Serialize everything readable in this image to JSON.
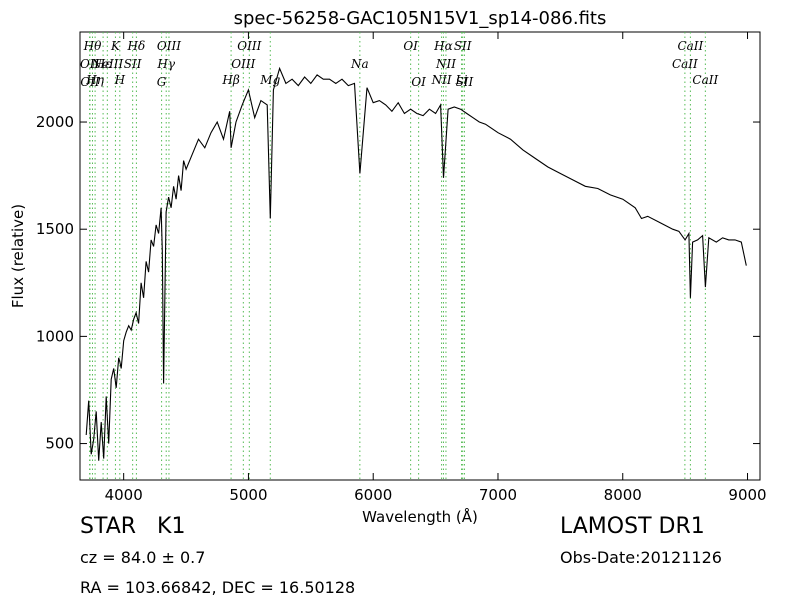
{
  "chart_data": {
    "type": "line",
    "title": "spec-56258-GAC105N15V1_sp14-086.fits",
    "xlabel": "Wavelength (Å)",
    "ylabel": "Flux (relative)",
    "xlim": [
      3650,
      9100
    ],
    "ylim": [
      330,
      2420
    ],
    "xticks": [
      "4000",
      "5000",
      "6000",
      "7000",
      "8000",
      "9000"
    ],
    "yticks": [
      "500",
      "1000",
      "1500",
      "2000"
    ],
    "series": [
      {
        "x": [
          3700,
          3720,
          3740,
          3760,
          3780,
          3800,
          3820,
          3840,
          3860,
          3880,
          3900,
          3920,
          3940,
          3960,
          3970,
          3980,
          4000,
          4020,
          4040,
          4060,
          4080,
          4100,
          4120,
          4140,
          4160,
          4180,
          4200,
          4220,
          4240,
          4260,
          4280,
          4300,
          4310,
          4320,
          4340,
          4360,
          4380,
          4400,
          4420,
          4440,
          4460,
          4480,
          4500,
          4550,
          4600,
          4650,
          4700,
          4750,
          4800,
          4850,
          4861,
          4900,
          4950,
          5000,
          5050,
          5100,
          5150,
          5175,
          5200,
          5250,
          5300,
          5350,
          5400,
          5450,
          5500,
          5550,
          5600,
          5650,
          5700,
          5750,
          5800,
          5850,
          5893,
          5950,
          6000,
          6050,
          6100,
          6150,
          6200,
          6250,
          6300,
          6350,
          6400,
          6450,
          6500,
          6540,
          6563,
          6600,
          6650,
          6700,
          6750,
          6800,
          6850,
          6900,
          7000,
          7100,
          7200,
          7300,
          7400,
          7500,
          7600,
          7700,
          7800,
          7900,
          8000,
          8100,
          8150,
          8200,
          8300,
          8400,
          8450,
          8500,
          8530,
          8542,
          8560,
          8600,
          8640,
          8662,
          8690,
          8750,
          8800,
          8850,
          8900,
          8950,
          8990
        ],
        "values": [
          540,
          700,
          450,
          520,
          650,
          420,
          600,
          430,
          720,
          500,
          800,
          850,
          760,
          900,
          880,
          850,
          980,
          1020,
          1050,
          1030,
          1080,
          1110,
          1060,
          1250,
          1180,
          1350,
          1300,
          1450,
          1420,
          1520,
          1480,
          1600,
          1400,
          780,
          1580,
          1650,
          1600,
          1700,
          1640,
          1750,
          1680,
          1820,
          1780,
          1850,
          1920,
          1880,
          1950,
          2000,
          1920,
          2050,
          1880,
          2000,
          2080,
          2150,
          2020,
          2100,
          2080,
          1550,
          2150,
          2250,
          2180,
          2200,
          2170,
          2210,
          2180,
          2220,
          2200,
          2200,
          2180,
          2200,
          2170,
          2180,
          1760,
          2160,
          2090,
          2100,
          2080,
          2050,
          2090,
          2040,
          2060,
          2040,
          2030,
          2060,
          2040,
          2080,
          1740,
          2060,
          2070,
          2060,
          2040,
          2020,
          2000,
          1990,
          1950,
          1920,
          1870,
          1830,
          1790,
          1760,
          1730,
          1700,
          1690,
          1660,
          1640,
          1600,
          1550,
          1560,
          1530,
          1500,
          1490,
          1450,
          1480,
          1180,
          1440,
          1450,
          1470,
          1230,
          1460,
          1440,
          1460,
          1450,
          1450,
          1440,
          1330
        ]
      }
    ],
    "line_color": "#000000",
    "marker_color": "#55bb55",
    "lines": [
      {
        "x": 3727,
        "label": "OII",
        "row": 2
      },
      {
        "x": 3730,
        "label": "OII",
        "row": 4
      },
      {
        "x": 3750,
        "label": "Hθ",
        "row": 1
      },
      {
        "x": 3771,
        "label": "Hη",
        "row": 3
      },
      {
        "x": 3835,
        "label": "Hε",
        "row": 2
      },
      {
        "x": 3869,
        "label": "NeIII",
        "row": 2
      },
      {
        "x": 3934,
        "label": "K",
        "row": 1
      },
      {
        "x": 3969,
        "label": "H",
        "row": 3
      },
      {
        "x": 4072,
        "label": "SII",
        "row": 2
      },
      {
        "x": 4102,
        "label": "Hδ",
        "row": 1
      },
      {
        "x": 4304,
        "label": "G",
        "row": 4
      },
      {
        "x": 4341,
        "label": "Hγ",
        "row": 2
      },
      {
        "x": 4363,
        "label": "OIII",
        "row": 1
      },
      {
        "x": 4861,
        "label": "Hβ",
        "row": 3
      },
      {
        "x": 4959,
        "label": "OIII",
        "row": 2
      },
      {
        "x": 5007,
        "label": "OIII",
        "row": 1
      },
      {
        "x": 5175,
        "label": "Mg",
        "row": 3
      },
      {
        "x": 5893,
        "label": "Na",
        "row": 2
      },
      {
        "x": 6300,
        "label": "OI",
        "row": 1
      },
      {
        "x": 6364,
        "label": "OI",
        "row": 4
      },
      {
        "x": 6548,
        "label": "NII",
        "row": 3
      },
      {
        "x": 6563,
        "label": "Hα",
        "row": 1
      },
      {
        "x": 6583,
        "label": "NII",
        "row": 2
      },
      {
        "x": 6717,
        "label": "SII",
        "row": 1
      },
      {
        "x": 6731,
        "label": "SII",
        "row": 4
      },
      {
        "x": 6708,
        "label": "Li",
        "row": 3
      },
      {
        "x": 8498,
        "label": "CaII",
        "row": 2
      },
      {
        "x": 8542,
        "label": "CaII",
        "row": 1
      },
      {
        "x": 8662,
        "label": "CaII",
        "row": 3
      }
    ]
  },
  "info": {
    "object_class": "STAR",
    "subclass": "K1",
    "cz": "cz = 84.0  ± 0.7",
    "coords": "RA = 103.66842, DEC = 16.50128",
    "survey": "LAMOST DR1",
    "obs_date": "Obs-Date:20121126"
  }
}
